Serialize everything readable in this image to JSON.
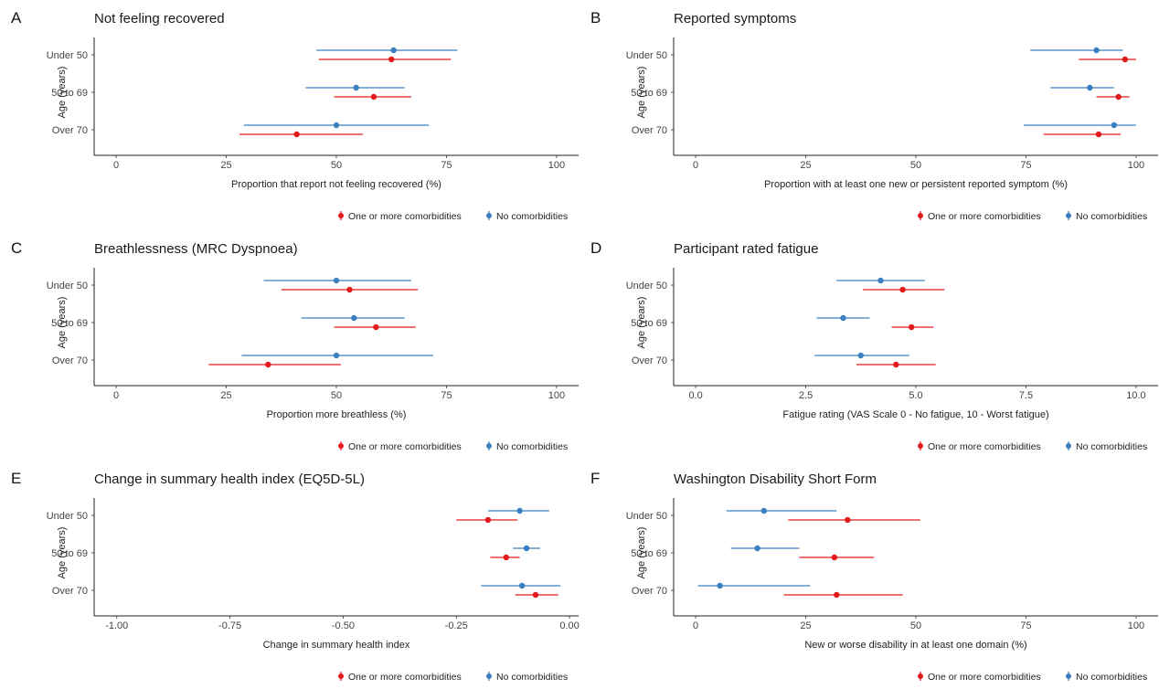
{
  "legend": {
    "entries": [
      {
        "key": "comorb",
        "label": "One or more comorbidities",
        "color": "#e31a1c"
      },
      {
        "key": "nocomorb",
        "label": "No comorbidities",
        "color": "#3a7fbf"
      }
    ]
  },
  "chart_data": [
    {
      "panel_label": "A",
      "type": "scatter",
      "title": "Not feeling recovered",
      "xlabel": "Proportion that report not feeling recovered (%)",
      "ylabel": "Age (years)",
      "xlim": [
        -5,
        105
      ],
      "xticks": [
        0,
        25,
        50,
        75,
        100
      ],
      "xtick_labels": [
        "0",
        "25",
        "50",
        "75",
        "100"
      ],
      "categories": [
        "Under 50",
        "50 to 69",
        "Over 70"
      ],
      "series": [
        {
          "name": "No comorbidities",
          "key": "nocomorb",
          "color": "#3a7fbf",
          "points": [
            {
              "category": "Under 50",
              "value": 63,
              "low": 45.5,
              "high": 77.5
            },
            {
              "category": "50 to 69",
              "value": 54.5,
              "low": 43,
              "high": 65.5
            },
            {
              "category": "Over 70",
              "value": 50,
              "low": 29,
              "high": 71
            }
          ]
        },
        {
          "name": "One or more comorbidities",
          "key": "comorb",
          "color": "#e31a1c",
          "points": [
            {
              "category": "Under 50",
              "value": 62.5,
              "low": 46,
              "high": 76
            },
            {
              "category": "50 to 69",
              "value": 58.5,
              "low": 49.5,
              "high": 67
            },
            {
              "category": "Over 70",
              "value": 41,
              "low": 28,
              "high": 56
            }
          ]
        }
      ]
    },
    {
      "panel_label": "B",
      "type": "scatter",
      "title": "Reported symptoms",
      "xlabel": "Proportion with at least one new or persistent reported symptom (%)",
      "ylabel": "Age (years)",
      "xlim": [
        -5,
        105
      ],
      "xticks": [
        0,
        25,
        50,
        75,
        100
      ],
      "xtick_labels": [
        "0",
        "25",
        "50",
        "75",
        "100"
      ],
      "categories": [
        "Under 50",
        "50 to 69",
        "Over 70"
      ],
      "series": [
        {
          "name": "No comorbidities",
          "key": "nocomorb",
          "color": "#3a7fbf",
          "points": [
            {
              "category": "Under 50",
              "value": 91,
              "low": 76,
              "high": 97
            },
            {
              "category": "50 to 69",
              "value": 89.5,
              "low": 80.5,
              "high": 95
            },
            {
              "category": "Over 70",
              "value": 95,
              "low": 74.5,
              "high": 100
            }
          ]
        },
        {
          "name": "One or more comorbidities",
          "key": "comorb",
          "color": "#e31a1c",
          "points": [
            {
              "category": "Under 50",
              "value": 97.5,
              "low": 87,
              "high": 100
            },
            {
              "category": "50 to 69",
              "value": 96,
              "low": 91,
              "high": 98.5
            },
            {
              "category": "Over 70",
              "value": 91.5,
              "low": 79,
              "high": 96.5
            }
          ]
        }
      ]
    },
    {
      "panel_label": "C",
      "type": "scatter",
      "title": "Breathlessness (MRC Dyspnoea)",
      "xlabel": "Proportion more breathless (%)",
      "ylabel": "Age (years)",
      "xlim": [
        -5,
        105
      ],
      "xticks": [
        0,
        25,
        50,
        75,
        100
      ],
      "xtick_labels": [
        "0",
        "25",
        "50",
        "75",
        "100"
      ],
      "categories": [
        "Under 50",
        "50 to 69",
        "Over 70"
      ],
      "series": [
        {
          "name": "No comorbidities",
          "key": "nocomorb",
          "color": "#3a7fbf",
          "points": [
            {
              "category": "Under 50",
              "value": 50,
              "low": 33.5,
              "high": 67
            },
            {
              "category": "50 to 69",
              "value": 54,
              "low": 42,
              "high": 65.5
            },
            {
              "category": "Over 70",
              "value": 50,
              "low": 28.5,
              "high": 72
            }
          ]
        },
        {
          "name": "One or more comorbidities",
          "key": "comorb",
          "color": "#e31a1c",
          "points": [
            {
              "category": "Under 50",
              "value": 53,
              "low": 37.5,
              "high": 68.5
            },
            {
              "category": "50 to 69",
              "value": 59,
              "low": 49.5,
              "high": 68
            },
            {
              "category": "Over 70",
              "value": 34.5,
              "low": 21,
              "high": 51
            }
          ]
        }
      ]
    },
    {
      "panel_label": "D",
      "type": "scatter",
      "title": "Participant rated fatigue",
      "xlabel": "Fatigue rating (VAS Scale 0 - No fatigue, 10 - Worst fatigue)",
      "ylabel": "Age (years)",
      "xlim": [
        -0.5,
        10.5
      ],
      "xticks": [
        0,
        2.5,
        5,
        7.5,
        10
      ],
      "xtick_labels": [
        "0.0",
        "2.5",
        "5.0",
        "7.5",
        "10.0"
      ],
      "categories": [
        "Under 50",
        "50 to 69",
        "Over 70"
      ],
      "series": [
        {
          "name": "No comorbidities",
          "key": "nocomorb",
          "color": "#3a7fbf",
          "points": [
            {
              "category": "Under 50",
              "value": 4.2,
              "low": 3.2,
              "high": 5.2
            },
            {
              "category": "50 to 69",
              "value": 3.35,
              "low": 2.75,
              "high": 3.95
            },
            {
              "category": "Over 70",
              "value": 3.75,
              "low": 2.7,
              "high": 4.85
            }
          ]
        },
        {
          "name": "One or more comorbidities",
          "key": "comorb",
          "color": "#e31a1c",
          "points": [
            {
              "category": "Under 50",
              "value": 4.7,
              "low": 3.8,
              "high": 5.65
            },
            {
              "category": "50 to 69",
              "value": 4.9,
              "low": 4.45,
              "high": 5.4
            },
            {
              "category": "Over 70",
              "value": 4.55,
              "low": 3.65,
              "high": 5.45
            }
          ]
        }
      ]
    },
    {
      "panel_label": "E",
      "type": "scatter",
      "title": "Change in summary health index (EQ5D-5L)",
      "xlabel": "Change in summary health index",
      "ylabel": "Age (years)",
      "xlim": [
        -1.05,
        0.02
      ],
      "xticks": [
        -1,
        -0.75,
        -0.5,
        -0.25,
        0
      ],
      "xtick_labels": [
        "-1.00",
        "-0.75",
        "-0.50",
        "-0.25",
        "0.00"
      ],
      "categories": [
        "Under 50",
        "50 to 69",
        "Over 70"
      ],
      "series": [
        {
          "name": "No comorbidities",
          "key": "nocomorb",
          "color": "#3a7fbf",
          "points": [
            {
              "category": "Under 50",
              "value": -0.11,
              "low": -0.18,
              "high": -0.045
            },
            {
              "category": "50 to 69",
              "value": -0.095,
              "low": -0.125,
              "high": -0.065
            },
            {
              "category": "Over 70",
              "value": -0.105,
              "low": -0.195,
              "high": -0.02
            }
          ]
        },
        {
          "name": "One or more comorbidities",
          "key": "comorb",
          "color": "#e31a1c",
          "points": [
            {
              "category": "Under 50",
              "value": -0.18,
              "low": -0.25,
              "high": -0.115
            },
            {
              "category": "50 to 69",
              "value": -0.14,
              "low": -0.175,
              "high": -0.11
            },
            {
              "category": "Over 70",
              "value": -0.075,
              "low": -0.12,
              "high": -0.025
            }
          ]
        }
      ]
    },
    {
      "panel_label": "F",
      "type": "scatter",
      "title": "Washington Disability Short Form",
      "xlabel": "New or worse disability in at least one domain (%)",
      "ylabel": "Age (years)",
      "xlim": [
        -5,
        105
      ],
      "xticks": [
        0,
        25,
        50,
        75,
        100
      ],
      "xtick_labels": [
        "0",
        "25",
        "50",
        "75",
        "100"
      ],
      "categories": [
        "Under 50",
        "50 to 69",
        "Over 70"
      ],
      "series": [
        {
          "name": "No comorbidities",
          "key": "nocomorb",
          "color": "#3a7fbf",
          "points": [
            {
              "category": "Under 50",
              "value": 15.5,
              "low": 7,
              "high": 32
            },
            {
              "category": "50 to 69",
              "value": 14,
              "low": 8,
              "high": 23.5
            },
            {
              "category": "Over 70",
              "value": 5.5,
              "low": 0.5,
              "high": 26
            }
          ]
        },
        {
          "name": "One or more comorbidities",
          "key": "comorb",
          "color": "#e31a1c",
          "points": [
            {
              "category": "Under 50",
              "value": 34.5,
              "low": 21,
              "high": 51
            },
            {
              "category": "50 to 69",
              "value": 31.5,
              "low": 23.5,
              "high": 40.5
            },
            {
              "category": "Over 70",
              "value": 32,
              "low": 20,
              "high": 47
            }
          ]
        }
      ]
    }
  ]
}
